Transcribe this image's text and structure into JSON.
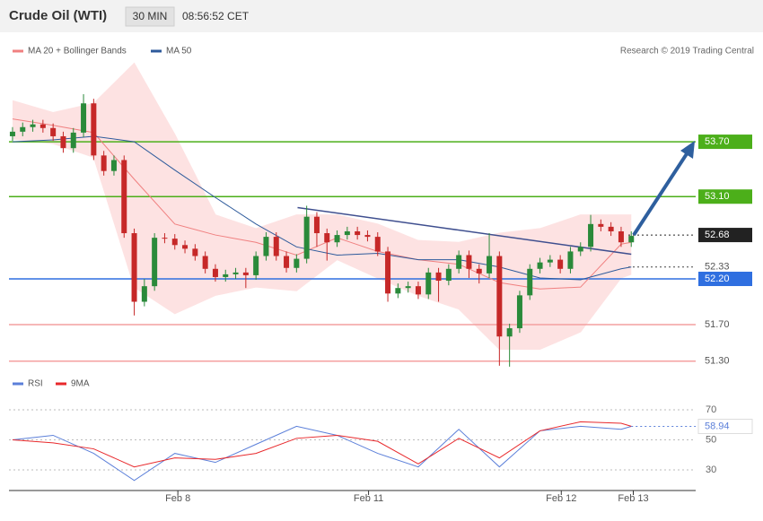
{
  "header": {
    "title": "Crude Oil (WTI)",
    "interval": "30 MIN",
    "time": "08:56:52 CET",
    "copyright": "Research © 2019 Trading Central"
  },
  "chart_data": [
    {
      "type": "candlestick",
      "xlim": [
        -0.35,
        67.35
      ],
      "ylim": [
        51.18,
        54.76
      ],
      "up_color": "#2a8a3a",
      "down_color": "#c62828",
      "candles": {
        "open": [
          53.76,
          53.81,
          53.86,
          53.89,
          53.85,
          53.76,
          53.63,
          53.8,
          54.12,
          53.55,
          53.38,
          53.5,
          52.7,
          51.95,
          52.12,
          52.65,
          52.64,
          52.57,
          52.53,
          52.45,
          52.31,
          52.22,
          52.25,
          52.27,
          52.24,
          52.45,
          52.66,
          52.45,
          52.32,
          52.42,
          52.88,
          52.7,
          52.6,
          52.68,
          52.72,
          52.68,
          52.66,
          52.5,
          52.04,
          52.1,
          52.12,
          52.03,
          52.27,
          52.18,
          52.31,
          52.46,
          52.31,
          52.26,
          52.45,
          51.57,
          51.66,
          52.02,
          52.31,
          52.38,
          52.41,
          52.31,
          52.5,
          52.55,
          52.8,
          52.77,
          52.72,
          52.6
        ],
        "high": [
          53.86,
          53.91,
          53.94,
          53.94,
          53.9,
          53.81,
          53.85,
          54.22,
          54.17,
          53.6,
          53.55,
          53.55,
          52.75,
          52.2,
          52.7,
          52.7,
          52.69,
          52.62,
          52.58,
          52.5,
          52.36,
          52.3,
          52.32,
          52.32,
          52.5,
          52.71,
          52.71,
          52.5,
          52.47,
          53.0,
          52.93,
          52.75,
          52.73,
          52.77,
          52.77,
          52.73,
          52.71,
          52.55,
          52.15,
          52.17,
          52.17,
          52.32,
          52.32,
          52.36,
          52.51,
          52.51,
          52.36,
          52.7,
          52.5,
          51.71,
          52.07,
          52.36,
          52.43,
          52.46,
          52.46,
          52.55,
          52.6,
          52.9,
          52.85,
          52.82,
          52.77,
          52.72
        ],
        "low": [
          53.71,
          53.76,
          53.81,
          53.8,
          53.71,
          53.58,
          53.58,
          53.75,
          53.5,
          53.33,
          53.33,
          52.65,
          51.8,
          51.9,
          52.07,
          52.59,
          52.52,
          52.48,
          52.4,
          52.26,
          52.17,
          52.17,
          52.2,
          52.1,
          52.19,
          52.4,
          52.4,
          52.27,
          52.27,
          52.37,
          52.55,
          52.4,
          52.55,
          52.63,
          52.63,
          52.61,
          52.45,
          51.95,
          51.99,
          52.05,
          51.98,
          51.98,
          51.95,
          52.13,
          52.26,
          52.21,
          52.15,
          52.21,
          51.25,
          51.24,
          51.61,
          51.97,
          52.26,
          52.33,
          52.26,
          52.26,
          52.45,
          52.5,
          52.72,
          52.67,
          52.55,
          52.55
        ],
        "close": [
          53.81,
          53.86,
          53.89,
          53.85,
          53.76,
          53.63,
          53.8,
          54.12,
          53.55,
          53.38,
          53.5,
          52.7,
          51.95,
          52.12,
          52.65,
          52.64,
          52.57,
          52.53,
          52.45,
          52.31,
          52.22,
          52.25,
          52.27,
          52.24,
          52.45,
          52.66,
          52.45,
          52.32,
          52.42,
          52.88,
          52.7,
          52.6,
          52.68,
          52.72,
          52.68,
          52.66,
          52.5,
          52.04,
          52.1,
          52.12,
          52.03,
          52.27,
          52.18,
          52.31,
          52.46,
          52.31,
          52.26,
          52.45,
          51.57,
          51.66,
          52.02,
          52.31,
          52.38,
          52.41,
          52.31,
          52.5,
          52.55,
          52.8,
          52.77,
          52.72,
          52.6,
          52.67
        ]
      },
      "overlays": [
        {
          "name": "MA 20 + Bollinger Bands",
          "color": "#f08080",
          "band_color": "#fde2e2",
          "x": [
            0,
            4,
            8,
            12,
            16,
            20,
            24,
            28,
            32,
            36,
            40,
            44,
            48,
            52,
            56,
            60,
            61
          ],
          "values": [
            53.95,
            53.88,
            53.8,
            53.29,
            52.8,
            52.68,
            52.6,
            52.46,
            52.65,
            52.5,
            52.41,
            52.36,
            52.16,
            52.09,
            52.11,
            52.58,
            52.6
          ],
          "upper": [
            54.15,
            54.02,
            54.12,
            54.56,
            53.78,
            52.9,
            52.75,
            52.9,
            52.9,
            52.8,
            52.62,
            52.6,
            52.7,
            52.75,
            52.9,
            52.9,
            52.9
          ],
          "lower": [
            53.73,
            53.68,
            53.53,
            52.11,
            51.82,
            52.02,
            52.11,
            52.07,
            52.41,
            52.21,
            52.02,
            51.87,
            51.43,
            51.43,
            51.62,
            52.21,
            52.25
          ]
        },
        {
          "name": "MA 50",
          "color": "#2d5a9b",
          "x": [
            0,
            4,
            8,
            12,
            16,
            20,
            24,
            28,
            32,
            36,
            40,
            44,
            48,
            52,
            56,
            60,
            61
          ],
          "values": [
            53.7,
            53.72,
            53.76,
            53.7,
            53.39,
            53.09,
            52.8,
            52.55,
            52.46,
            52.48,
            52.41,
            52.41,
            52.33,
            52.21,
            52.19,
            52.31,
            52.33
          ]
        }
      ],
      "trendline": {
        "x": [
          28.1,
          61
        ],
        "values": [
          52.98,
          52.47
        ],
        "color": "#3f4f8f"
      },
      "levels": [
        {
          "value": 53.7,
          "label": "53.70",
          "color": "#4caf1a",
          "style": "solid",
          "boxed": true
        },
        {
          "value": 53.1,
          "label": "53.10",
          "color": "#4caf1a",
          "style": "solid",
          "boxed": true
        },
        {
          "value": 52.68,
          "label": "52.68",
          "color": "#222222",
          "style": "dotted",
          "boxed": true
        },
        {
          "value": 52.33,
          "label": "52.33",
          "color": "#444444",
          "style": "dotted",
          "boxed": false
        },
        {
          "value": 52.2,
          "label": "52.20",
          "color": "#2f6fe0",
          "style": "solid",
          "boxed": true
        },
        {
          "value": 51.7,
          "label": "51.70",
          "color": "#f4a0a0",
          "style": "solid",
          "boxed": false
        },
        {
          "value": 51.3,
          "label": "51.30",
          "color": "#f4a0a0",
          "style": "solid",
          "boxed": false
        }
      ]
    },
    {
      "type": "line",
      "xlim": [
        -0.35,
        67.35
      ],
      "ylim": [
        17.5,
        80.1
      ],
      "yticks": [
        30,
        50,
        70
      ],
      "grid": true,
      "xticks": [
        {
          "value": 16.3,
          "label": "Feb 8"
        },
        {
          "value": 35.1,
          "label": "Feb 11"
        },
        {
          "value": 54.1,
          "label": "Feb 12"
        },
        {
          "value": 61.2,
          "label": "Feb 13"
        }
      ],
      "series": [
        {
          "name": "RSI",
          "color": "#5b7fd9",
          "x": [
            0,
            4,
            8,
            12,
            16,
            20,
            24,
            28,
            32,
            36,
            40,
            44,
            48,
            52,
            56,
            60,
            61
          ],
          "values": [
            50,
            53,
            41,
            23,
            41,
            35,
            47,
            59,
            53,
            41,
            32,
            57,
            32,
            56,
            59,
            57,
            58.94
          ]
        },
        {
          "name": "9MA",
          "color": "#e8282b",
          "x": [
            0,
            4,
            8,
            12,
            16,
            20,
            24,
            28,
            32,
            36,
            40,
            44,
            48,
            52,
            56,
            60,
            61
          ],
          "values": [
            50,
            48,
            44,
            32,
            38,
            37,
            41,
            51,
            53,
            49,
            34,
            51,
            38,
            56,
            62,
            61,
            59
          ]
        }
      ]
    }
  ]
}
